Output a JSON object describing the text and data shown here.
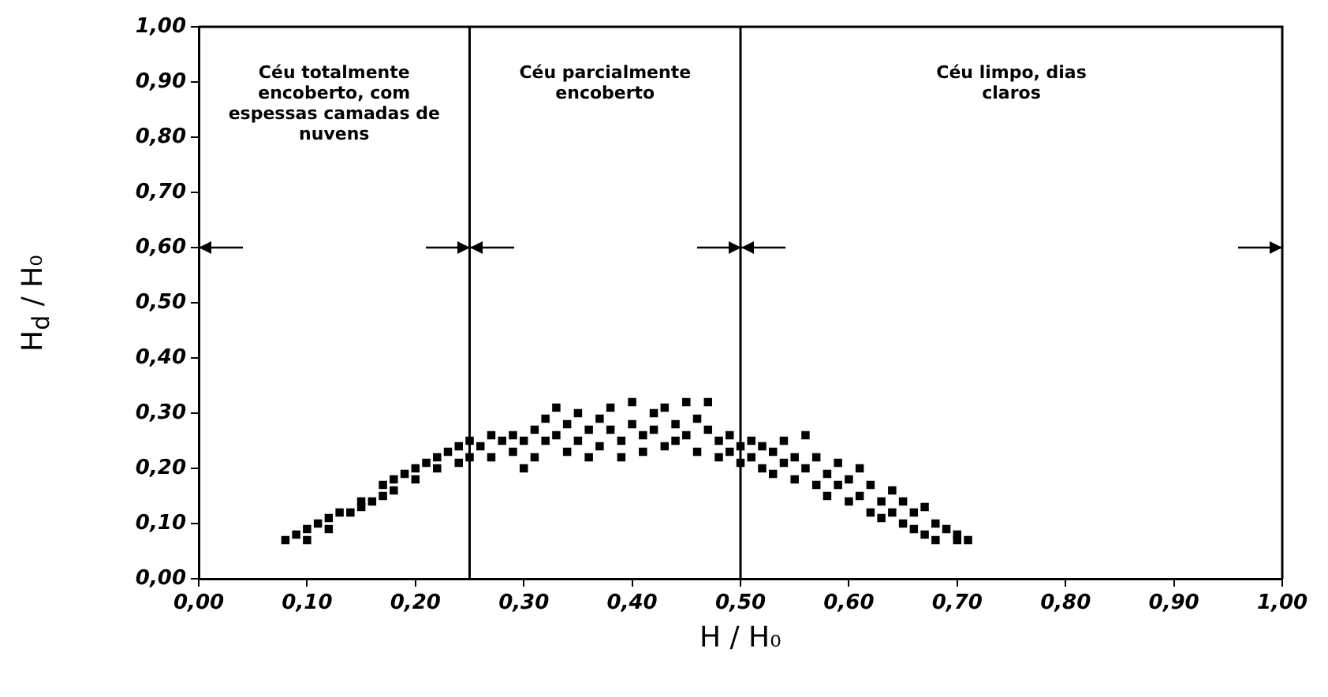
{
  "chart_data": {
    "type": "scatter",
    "xlabel": "H / H₀",
    "ylabel": "H$_{d}$ / H₀",
    "xlim": [
      0,
      1
    ],
    "ylim": [
      0,
      1
    ],
    "xticks": [
      {
        "value": 0,
        "label": "0,00"
      },
      {
        "value": 0.1,
        "label": "0,10"
      },
      {
        "value": 0.2,
        "label": "0,20"
      },
      {
        "value": 0.3,
        "label": "0,30"
      },
      {
        "value": 0.4,
        "label": "0,40"
      },
      {
        "value": 0.5,
        "label": "0,50"
      },
      {
        "value": 0.6,
        "label": "0,60"
      },
      {
        "value": 0.7,
        "label": "0,70"
      },
      {
        "value": 0.8,
        "label": "0,80"
      },
      {
        "value": 0.9,
        "label": "0,90"
      },
      {
        "value": 1,
        "label": "1,00"
      }
    ],
    "yticks": [
      {
        "value": 0,
        "label": "0,00"
      },
      {
        "value": 0.1,
        "label": "0,10"
      },
      {
        "value": 0.2,
        "label": "0,20"
      },
      {
        "value": 0.3,
        "label": "0,30"
      },
      {
        "value": 0.4,
        "label": "0,40"
      },
      {
        "value": 0.5,
        "label": "0,50"
      },
      {
        "value": 0.6,
        "label": "0,60"
      },
      {
        "value": 0.7,
        "label": "0,70"
      },
      {
        "value": 0.8,
        "label": "0,80"
      },
      {
        "value": 0.9,
        "label": "0,90"
      },
      {
        "value": 1,
        "label": "1,00"
      }
    ],
    "grid": false,
    "legend": false,
    "marker": "square",
    "series": [
      {
        "color": "#000000",
        "x": [
          0.08,
          0.09,
          0.1,
          0.1,
          0.11,
          0.12,
          0.12,
          0.13,
          0.14,
          0.15,
          0.15,
          0.16,
          0.17,
          0.17,
          0.18,
          0.18,
          0.19,
          0.2,
          0.2,
          0.21,
          0.22,
          0.22,
          0.23,
          0.24,
          0.24,
          0.25,
          0.25,
          0.26,
          0.27,
          0.27,
          0.28,
          0.29,
          0.29,
          0.3,
          0.3,
          0.31,
          0.31,
          0.32,
          0.32,
          0.33,
          0.33,
          0.34,
          0.34,
          0.35,
          0.35,
          0.36,
          0.36,
          0.37,
          0.37,
          0.38,
          0.38,
          0.39,
          0.39,
          0.4,
          0.4,
          0.41,
          0.41,
          0.42,
          0.42,
          0.43,
          0.43,
          0.44,
          0.44,
          0.45,
          0.45,
          0.46,
          0.46,
          0.47,
          0.47,
          0.48,
          0.48,
          0.49,
          0.49,
          0.5,
          0.5,
          0.51,
          0.51,
          0.52,
          0.52,
          0.53,
          0.53,
          0.54,
          0.54,
          0.55,
          0.55,
          0.56,
          0.56,
          0.57,
          0.57,
          0.58,
          0.58,
          0.59,
          0.59,
          0.6,
          0.6,
          0.61,
          0.61,
          0.62,
          0.62,
          0.63,
          0.63,
          0.64,
          0.64,
          0.65,
          0.65,
          0.66,
          0.66,
          0.67,
          0.67,
          0.68,
          0.68,
          0.69,
          0.7,
          0.7,
          0.71
        ],
        "values": [
          0.07,
          0.08,
          0.09,
          0.07,
          0.1,
          0.11,
          0.09,
          0.12,
          0.12,
          0.13,
          0.14,
          0.14,
          0.15,
          0.17,
          0.18,
          0.16,
          0.19,
          0.18,
          0.2,
          0.21,
          0.2,
          0.22,
          0.23,
          0.21,
          0.24,
          0.22,
          0.25,
          0.24,
          0.26,
          0.22,
          0.25,
          0.23,
          0.26,
          0.2,
          0.25,
          0.27,
          0.22,
          0.29,
          0.25,
          0.31,
          0.26,
          0.23,
          0.28,
          0.3,
          0.25,
          0.27,
          0.22,
          0.29,
          0.24,
          0.31,
          0.27,
          0.25,
          0.22,
          0.32,
          0.28,
          0.26,
          0.23,
          0.3,
          0.27,
          0.31,
          0.24,
          0.28,
          0.25,
          0.32,
          0.26,
          0.29,
          0.23,
          0.32,
          0.27,
          0.25,
          0.22,
          0.26,
          0.23,
          0.24,
          0.21,
          0.25,
          0.22,
          0.2,
          0.24,
          0.23,
          0.19,
          0.25,
          0.21,
          0.22,
          0.18,
          0.26,
          0.2,
          0.17,
          0.22,
          0.19,
          0.15,
          0.21,
          0.17,
          0.14,
          0.18,
          0.2,
          0.15,
          0.12,
          0.17,
          0.14,
          0.11,
          0.16,
          0.12,
          0.1,
          0.14,
          0.09,
          0.12,
          0.13,
          0.08,
          0.1,
          0.07,
          0.09,
          0.07,
          0.08,
          0.07
        ]
      }
    ],
    "ref_lines": [
      {
        "axis": "x",
        "value": 0.25,
        "color": "#000000"
      },
      {
        "axis": "x",
        "value": 0.5,
        "color": "#000000"
      }
    ],
    "annotations": [
      "Céu totalmente encoberto, com espessas camadas de nuvens",
      "Céu parcialmente encoberto",
      "Céu limpo, dias claros"
    ]
  }
}
